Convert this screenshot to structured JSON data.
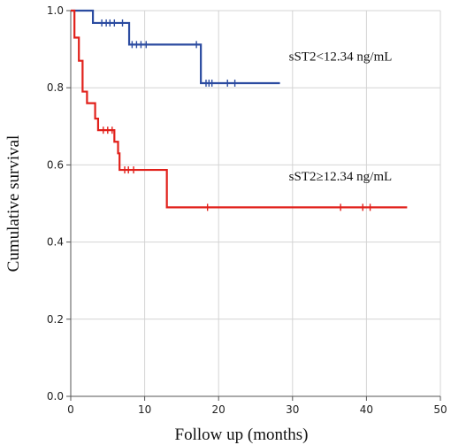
{
  "chart_data": {
    "type": "line",
    "title": "",
    "xlabel": "Follow up (months)",
    "ylabel": "Cumulative survival",
    "xlim": [
      0,
      50
    ],
    "ylim": [
      0,
      1
    ],
    "x_ticks": [
      "0",
      "10",
      "20",
      "30",
      "40",
      "50"
    ],
    "y_ticks": [
      "0.0",
      "0.2",
      "0.4",
      "0.6",
      "0.8",
      "1.0"
    ],
    "grid": true,
    "legend": "none",
    "series": [
      {
        "name": "sST2<12.34 ng/mL",
        "color": "#2b4ba0",
        "label_at": [
          29.5,
          0.87
        ],
        "steps": [
          [
            0,
            1.0
          ],
          [
            3.0,
            0.968
          ],
          [
            7.5,
            0.968
          ],
          [
            7.9,
            0.912
          ],
          [
            17.4,
            0.912
          ],
          [
            17.6,
            0.812
          ],
          [
            28.3,
            0.812
          ]
        ],
        "censored": [
          [
            4.2,
            0.968
          ],
          [
            4.8,
            0.968
          ],
          [
            5.3,
            0.968
          ],
          [
            5.9,
            0.968
          ],
          [
            7.0,
            0.968
          ],
          [
            8.3,
            0.912
          ],
          [
            8.9,
            0.912
          ],
          [
            9.5,
            0.912
          ],
          [
            10.2,
            0.912
          ],
          [
            17.0,
            0.912
          ],
          [
            18.3,
            0.812
          ],
          [
            18.7,
            0.812
          ],
          [
            19.1,
            0.812
          ],
          [
            21.2,
            0.812
          ],
          [
            22.2,
            0.812
          ]
        ]
      },
      {
        "name": "sST2≥12.34 ng/mL",
        "color": "#e1211b",
        "label_at": [
          29.5,
          0.56
        ],
        "steps": [
          [
            0,
            1.0
          ],
          [
            0.5,
            0.93
          ],
          [
            1.1,
            0.87
          ],
          [
            1.6,
            0.79
          ],
          [
            2.2,
            0.76
          ],
          [
            3.3,
            0.72
          ],
          [
            3.7,
            0.69
          ],
          [
            5.9,
            0.66
          ],
          [
            6.4,
            0.63
          ],
          [
            6.6,
            0.587
          ],
          [
            13.0,
            0.49
          ],
          [
            45.5,
            0.49
          ]
        ],
        "censored": [
          [
            4.4,
            0.69
          ],
          [
            5.0,
            0.69
          ],
          [
            5.6,
            0.69
          ],
          [
            7.3,
            0.587
          ],
          [
            7.8,
            0.587
          ],
          [
            8.5,
            0.587
          ],
          [
            18.5,
            0.49
          ],
          [
            36.5,
            0.49
          ],
          [
            39.5,
            0.49
          ],
          [
            40.5,
            0.49
          ]
        ]
      }
    ]
  }
}
